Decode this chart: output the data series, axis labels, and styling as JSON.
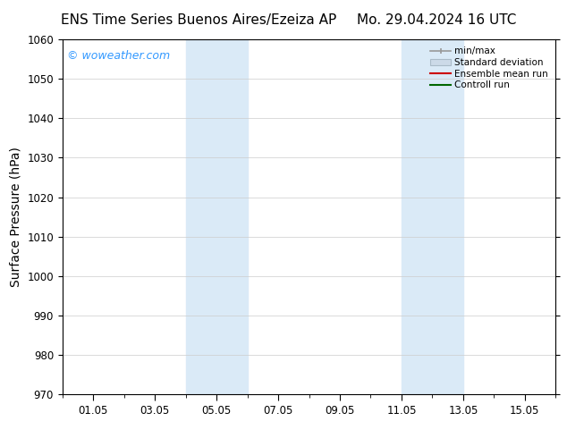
{
  "title_left": "ENS Time Series Buenos Aires/Ezeiza AP",
  "title_right": "Mo. 29.04.2024 16 UTC",
  "ylabel": "Surface Pressure (hPa)",
  "ylim": [
    970,
    1060
  ],
  "yticks": [
    970,
    980,
    990,
    1000,
    1010,
    1020,
    1030,
    1040,
    1050,
    1060
  ],
  "xtick_labels": [
    "01.05",
    "03.05",
    "05.05",
    "07.05",
    "09.05",
    "11.05",
    "13.05",
    "15.05"
  ],
  "xtick_positions": [
    1,
    3,
    5,
    7,
    9,
    11,
    13,
    15
  ],
  "xlim": [
    0,
    16
  ],
  "shaded_bands": [
    {
      "x_start": 4.0,
      "x_end": 6.0,
      "color": "#daeaf7"
    },
    {
      "x_start": 11.0,
      "x_end": 13.0,
      "color": "#daeaf7"
    }
  ],
  "background_color": "#ffffff",
  "watermark": "© woweather.com",
  "watermark_color": "#3399ff",
  "grid_color": "#cccccc",
  "title_fontsize": 11,
  "axis_label_fontsize": 10,
  "tick_fontsize": 8.5
}
